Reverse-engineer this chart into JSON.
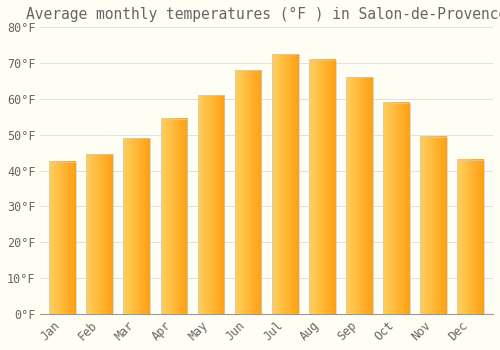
{
  "title": "Average monthly temperatures (°F ) in Salon-de-Provence",
  "months": [
    "Jan",
    "Feb",
    "Mar",
    "Apr",
    "May",
    "Jun",
    "Jul",
    "Aug",
    "Sep",
    "Oct",
    "Nov",
    "Dec"
  ],
  "values": [
    42.5,
    44.5,
    49.0,
    54.5,
    61.0,
    68.0,
    72.5,
    71.0,
    66.0,
    59.0,
    49.5,
    43.0
  ],
  "bar_color_left": "#FFD060",
  "bar_color_right": "#FFA010",
  "bar_edge_color": "#CCCCCC",
  "background_color": "#FFFEF5",
  "grid_color": "#E0E0E0",
  "text_color": "#666666",
  "ylim": [
    0,
    80
  ],
  "yticks": [
    0,
    10,
    20,
    30,
    40,
    50,
    60,
    70,
    80
  ],
  "ytick_labels": [
    "0°F",
    "10°F",
    "20°F",
    "30°F",
    "40°F",
    "50°F",
    "60°F",
    "70°F",
    "80°F"
  ],
  "title_fontsize": 10.5,
  "tick_fontsize": 8.5
}
